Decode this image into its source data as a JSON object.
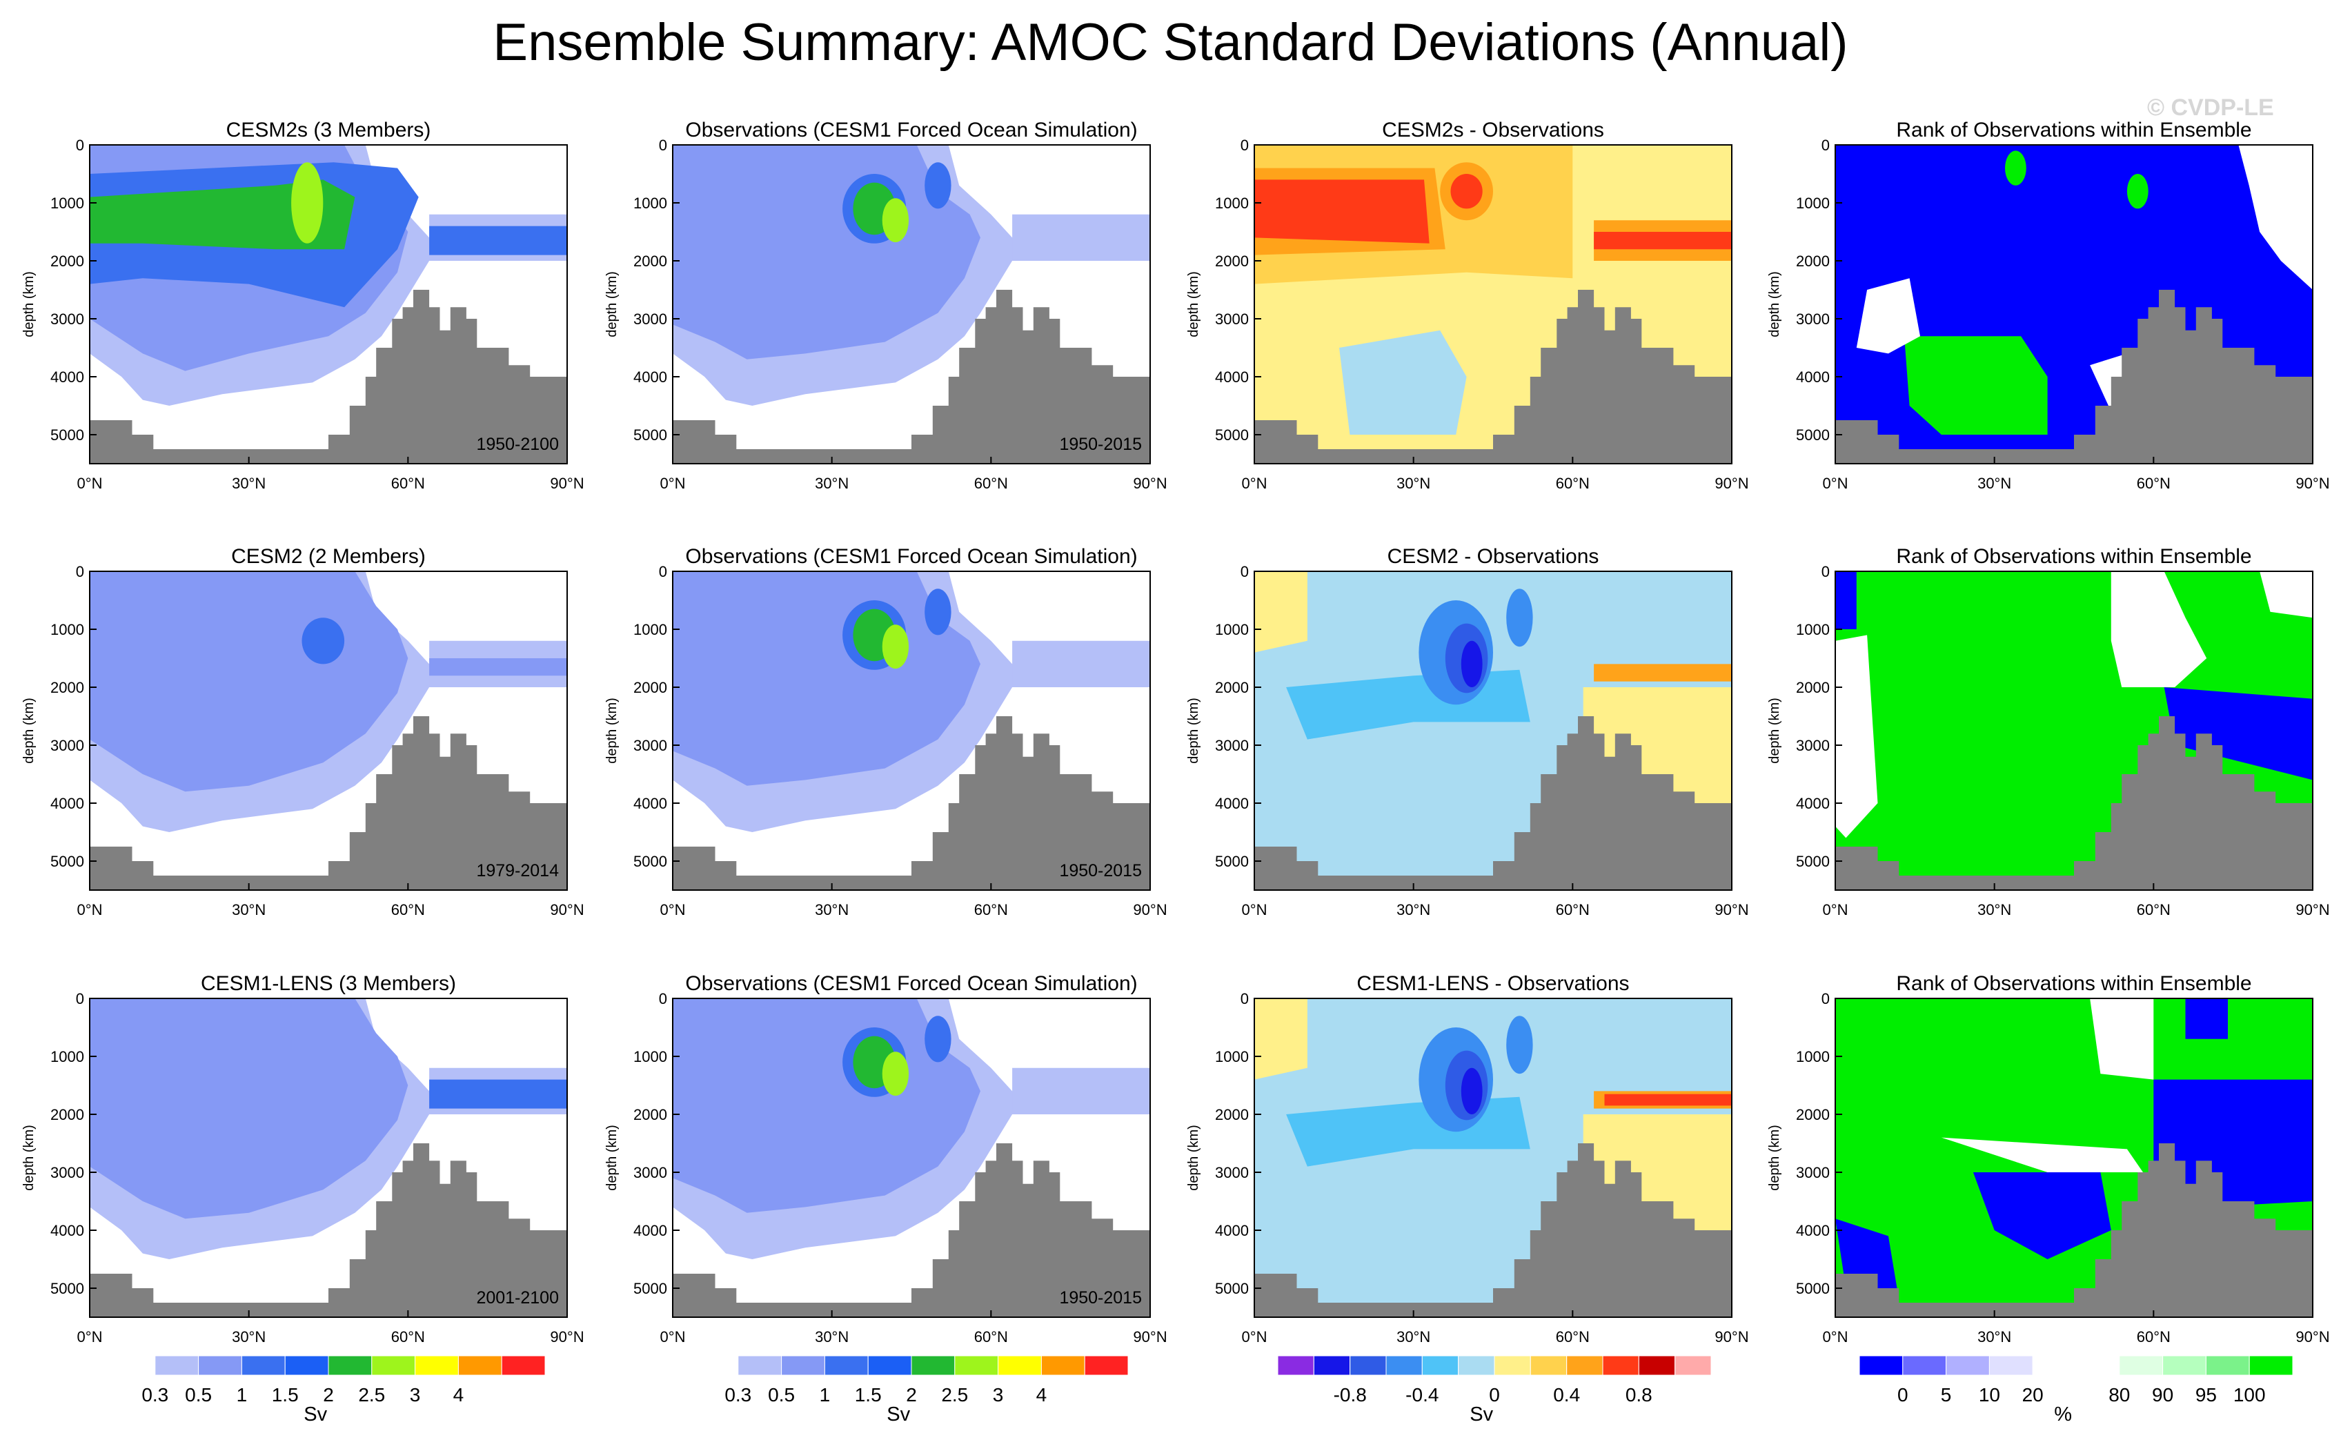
{
  "title": "Ensemble Summary: AMOC Standard Deviations (Annual)",
  "watermark": "© CVDP-LE",
  "axes": {
    "x_ticks": [
      "0°N",
      "30°N",
      "60°N",
      "90°N"
    ],
    "y_ticks": [
      "0",
      "1000",
      "2000",
      "3000",
      "4000",
      "5000"
    ],
    "y_label": "depth (km)"
  },
  "rows": [
    {
      "panels": [
        {
          "title": "CESM2s (3 Members)",
          "period": "1950-2100"
        },
        {
          "title": "Observations (CESM1 Forced Ocean Simulation)",
          "period": "1950-2015"
        },
        {
          "title": "CESM2s - Observations",
          "period": ""
        },
        {
          "title": "Rank of Observations within Ensemble",
          "period": ""
        }
      ]
    },
    {
      "panels": [
        {
          "title": "CESM2 (2 Members)",
          "period": "1979-2014"
        },
        {
          "title": "Observations (CESM1 Forced Ocean Simulation)",
          "period": "1950-2015"
        },
        {
          "title": "CESM2 - Observations",
          "period": ""
        },
        {
          "title": "Rank of Observations within Ensemble",
          "period": ""
        }
      ]
    },
    {
      "panels": [
        {
          "title": "CESM1-LENS (3 Members)",
          "period": "2001-2100"
        },
        {
          "title": "Observations (CESM1 Forced Ocean Simulation)",
          "period": "1950-2015"
        },
        {
          "title": "CESM1-LENS - Observations",
          "period": ""
        },
        {
          "title": "Rank of Observations within Ensemble",
          "period": ""
        }
      ]
    }
  ],
  "colorbars": [
    {
      "unit": "Sv",
      "colors": [
        "#ffffff",
        "#b4bff8",
        "#8599f5",
        "#3a70f0",
        "#1b5ff5",
        "#22b832",
        "#9ef41c",
        "#ffff00",
        "#ff9900",
        "#ff2222"
      ],
      "labels": [
        {
          "text": "0.3",
          "at": 1
        },
        {
          "text": "0.5",
          "at": 2
        },
        {
          "text": "1",
          "at": 3
        },
        {
          "text": "1.5",
          "at": 4
        },
        {
          "text": "2",
          "at": 5
        },
        {
          "text": "2.5",
          "at": 6
        },
        {
          "text": "3",
          "at": 7
        },
        {
          "text": "4",
          "at": 8
        }
      ]
    },
    {
      "unit": "Sv",
      "colors": [
        "#ffffff",
        "#b4bff8",
        "#8599f5",
        "#3a70f0",
        "#1b5ff5",
        "#22b832",
        "#9ef41c",
        "#ffff00",
        "#ff9900",
        "#ff2222"
      ],
      "labels": [
        {
          "text": "0.3",
          "at": 1
        },
        {
          "text": "0.5",
          "at": 2
        },
        {
          "text": "1",
          "at": 3
        },
        {
          "text": "1.5",
          "at": 4
        },
        {
          "text": "2",
          "at": 5
        },
        {
          "text": "2.5",
          "at": 6
        },
        {
          "text": "3",
          "at": 7
        },
        {
          "text": "4",
          "at": 8
        }
      ]
    },
    {
      "unit": "Sv",
      "colors": [
        "#8a2be2",
        "#1616e8",
        "#2f5be6",
        "#3b8ef2",
        "#4fc3f7",
        "#aadcf2",
        "#fff08a",
        "#ffd24d",
        "#ffa31a",
        "#ff3a17",
        "#c80000",
        "#ffaaaa"
      ],
      "labels": [
        {
          "text": "-0.8",
          "at": 2
        },
        {
          "text": "-0.4",
          "at": 4
        },
        {
          "text": "0",
          "at": 6
        },
        {
          "text": "0.4",
          "at": 8
        },
        {
          "text": "0.8",
          "at": 10
        }
      ]
    },
    {
      "unit": "%",
      "colors": [
        "#0000ff",
        "#6a6aff",
        "#b0b0ff",
        "#e0e0ff",
        "#ffffff",
        "#ffffff",
        "#dfffe3",
        "#b5ffbe",
        "#7bf28a",
        "#00ee00"
      ],
      "labels": [
        {
          "text": "0",
          "at": 1
        },
        {
          "text": "5",
          "at": 2
        },
        {
          "text": "10",
          "at": 3
        },
        {
          "text": "20",
          "at": 4
        },
        {
          "text": "80",
          "at": 6
        },
        {
          "text": "90",
          "at": 7
        },
        {
          "text": "95",
          "at": 8
        },
        {
          "text": "100",
          "at": 9
        }
      ]
    }
  ],
  "chart_data": {
    "type": "contour",
    "description": "Latitude-depth sections of AMOC annual standard deviation (Sv) for 3 ensembles vs observations, plus differences and rank",
    "x_range": [
      0,
      90
    ],
    "x_units": "degrees N",
    "y_range": [
      0,
      5500
    ],
    "y_units": "depth",
    "sv_levels": [
      0.3,
      0.5,
      1,
      1.5,
      2,
      2.5,
      3,
      4
    ],
    "diff_levels": [
      -0.8,
      -0.4,
      0,
      0.4,
      0.8
    ],
    "rank_levels_percent": [
      0,
      5,
      10,
      20,
      80,
      90,
      95,
      100
    ]
  }
}
